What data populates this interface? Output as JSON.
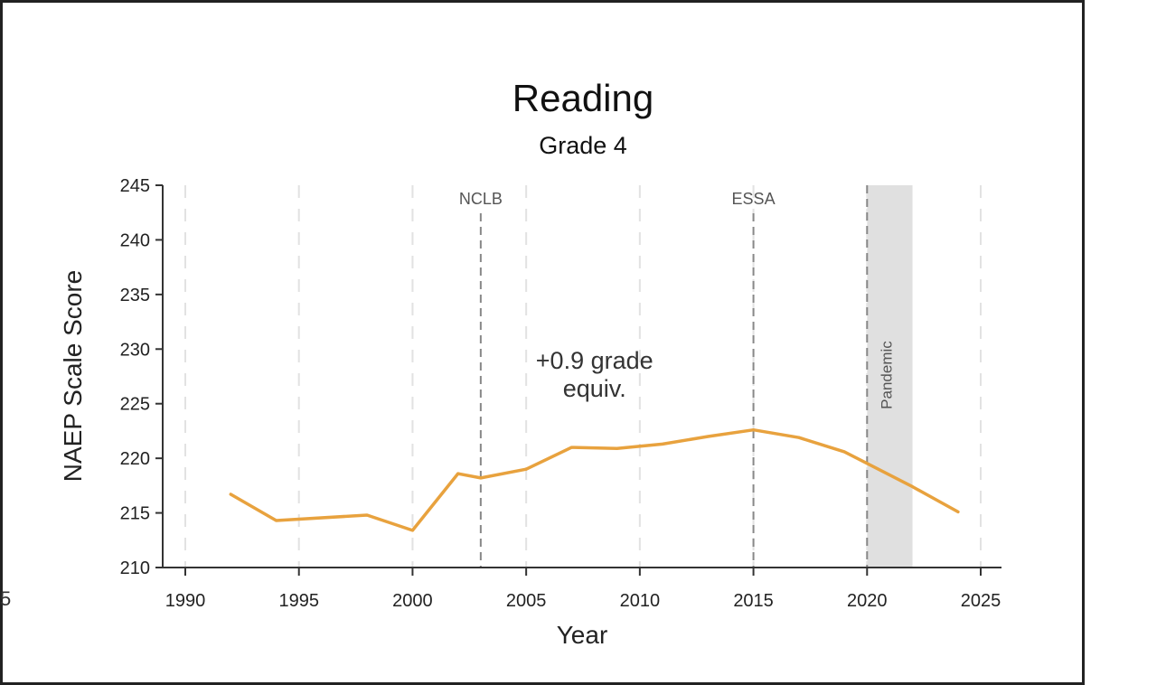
{
  "chart_data": {
    "type": "line",
    "title": "Reading",
    "subtitle": "Grade 4",
    "xlabel": "Year",
    "ylabel": "NAEP Scale Score",
    "xlim": [
      1989,
      2026
    ],
    "ylim": [
      210,
      245
    ],
    "x_ticks": [
      1990,
      1995,
      2000,
      2005,
      2010,
      2015,
      2020,
      2025
    ],
    "y_ticks": [
      210,
      215,
      220,
      225,
      230,
      235,
      240,
      245
    ],
    "grid": "vertical dashed at x ticks",
    "series": [
      {
        "color": "#E8A23E",
        "points": [
          [
            1992,
            216.7
          ],
          [
            1994,
            214.3
          ],
          [
            1998,
            214.8
          ],
          [
            2000,
            213.4
          ],
          [
            2002,
            218.6
          ],
          [
            2003,
            218.2
          ],
          [
            2005,
            219.0
          ],
          [
            2007,
            221.0
          ],
          [
            2009,
            220.9
          ],
          [
            2011,
            221.3
          ],
          [
            2013,
            222.0
          ],
          [
            2015,
            222.6
          ],
          [
            2017,
            221.9
          ],
          [
            2019,
            220.6
          ],
          [
            2022,
            217.4
          ],
          [
            2024,
            215.1
          ]
        ]
      }
    ],
    "reference_lines": [
      {
        "x": 2003,
        "label": "NCLB"
      },
      {
        "x": 2015,
        "label": "ESSA"
      }
    ],
    "shaded_regions": [
      {
        "x_start": 2020,
        "x_end": 2022,
        "label": "Pandemic",
        "color": "#E0E0E0"
      }
    ],
    "annotations": [
      {
        "lines": [
          "+0.9 grade",
          "equiv."
        ],
        "x": 2009,
        "y": 228.2
      }
    ]
  },
  "edge_mark": "5"
}
